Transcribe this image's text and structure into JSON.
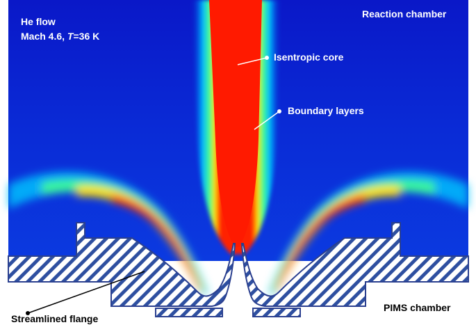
{
  "labels": {
    "flow_title": "He flow",
    "flow_mach": "Mach 4.6,",
    "flow_temp_symbol": "T",
    "flow_temp_value": "=36 K",
    "reaction_chamber": "Reaction chamber",
    "isentropic_core": "Isentropic core",
    "boundary_layers": "Boundary layers",
    "streamlined_flange": "Streamlined flange",
    "pims_chamber": "PIMS chamber"
  },
  "colors": {
    "background_flow": "#0a2bd6",
    "core": "#ff1a00",
    "flange_stripe": "#2e4fa0",
    "flange_outline": "#2a3f8f"
  }
}
